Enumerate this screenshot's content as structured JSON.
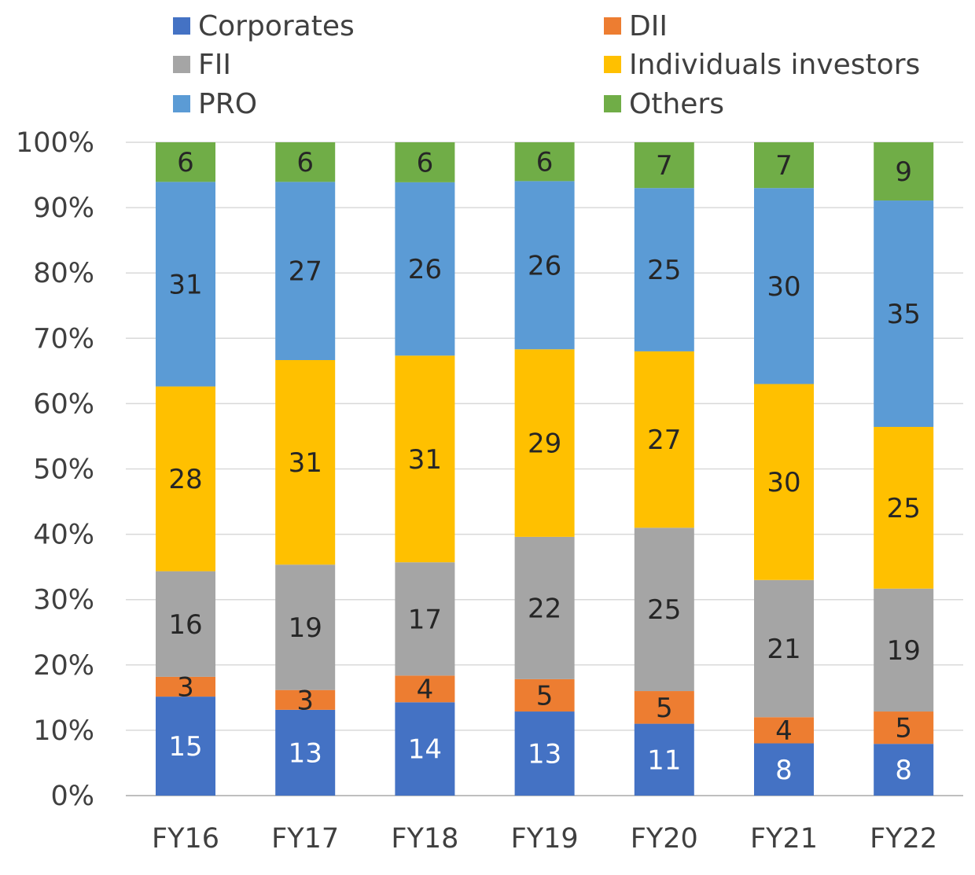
{
  "chart_data": {
    "type": "bar",
    "stacked": true,
    "percent_axis": true,
    "categories": [
      "FY16",
      "FY17",
      "FY18",
      "FY19",
      "FY20",
      "FY21",
      "FY22"
    ],
    "series": [
      {
        "name": "Corporates",
        "color": "#4472C4",
        "label_color": "#ffffff",
        "values": [
          15,
          13,
          14,
          13,
          11,
          8,
          8
        ]
      },
      {
        "name": "DII",
        "color": "#ED7D31",
        "label_color": "#262626",
        "values": [
          3,
          3,
          4,
          5,
          5,
          4,
          5
        ]
      },
      {
        "name": "FII",
        "color": "#A5A5A5",
        "label_color": "#262626",
        "values": [
          16,
          19,
          17,
          22,
          25,
          21,
          19
        ]
      },
      {
        "name": "Individuals investors",
        "color": "#FFC000",
        "label_color": "#262626",
        "values": [
          28,
          31,
          31,
          29,
          27,
          30,
          25
        ]
      },
      {
        "name": "PRO",
        "color": "#5B9BD5",
        "label_color": "#262626",
        "values": [
          31,
          27,
          26,
          26,
          25,
          30,
          35
        ]
      },
      {
        "name": "Others",
        "color": "#70AD47",
        "label_color": "#262626",
        "values": [
          6,
          6,
          6,
          6,
          7,
          7,
          9
        ]
      }
    ],
    "y_ticks": [
      "0%",
      "10%",
      "20%",
      "30%",
      "40%",
      "50%",
      "60%",
      "70%",
      "80%",
      "90%",
      "100%"
    ],
    "ylim": [
      0,
      100
    ],
    "title": "",
    "xlabel": "",
    "ylabel": "",
    "grid": true,
    "legend_position": "top",
    "legend_order": [
      "Corporates",
      "DII",
      "FII",
      "Individuals investors",
      "PRO",
      "Others"
    ]
  }
}
